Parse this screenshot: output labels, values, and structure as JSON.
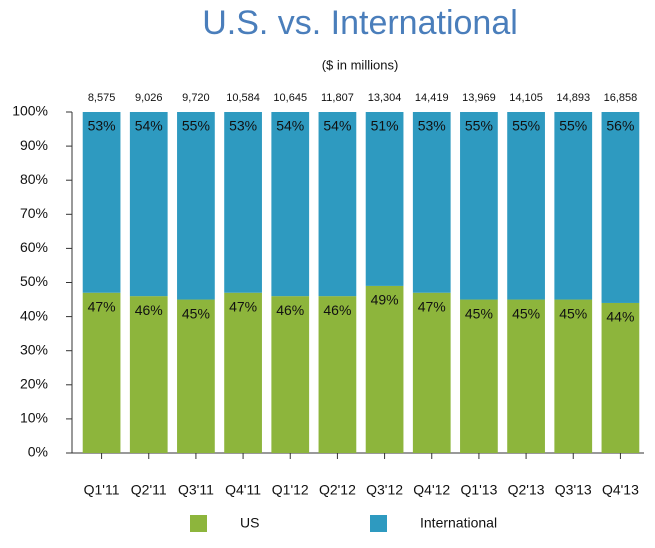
{
  "chart_data": {
    "type": "stacked_bar_100",
    "title": "U.S. vs. International",
    "subtitle": "($ in millions)",
    "categories": [
      "Q1'11",
      "Q2'11",
      "Q3'11",
      "Q4'11",
      "Q1'12",
      "Q2'12",
      "Q3'12",
      "Q4'12",
      "Q1'13",
      "Q2'13",
      "Q3'13",
      "Q4'13"
    ],
    "total_labels": [
      "8,575",
      "9,026",
      "9,720",
      "10,584",
      "10,645",
      "11,807",
      "13,304",
      "14,419",
      "13,969",
      "14,105",
      "14,893",
      "16,858"
    ],
    "series": [
      {
        "name": "US",
        "color": "#8db53c",
        "values": [
          47,
          46,
          45,
          47,
          46,
          46,
          49,
          47,
          45,
          45,
          45,
          44
        ],
        "value_labels": [
          "47%",
          "46%",
          "45%",
          "47%",
          "46%",
          "46%",
          "49%",
          "47%",
          "45%",
          "45%",
          "45%",
          "44%"
        ]
      },
      {
        "name": "International",
        "color": "#2e9ac0",
        "values": [
          53,
          54,
          55,
          53,
          54,
          54,
          51,
          53,
          55,
          55,
          55,
          56
        ],
        "value_labels": [
          "53%",
          "54%",
          "55%",
          "53%",
          "54%",
          "54%",
          "51%",
          "53%",
          "55%",
          "55%",
          "55%",
          "56%"
        ]
      }
    ],
    "ylim": [
      0,
      100
    ],
    "yticks": [
      {
        "value": 0,
        "label": "0%"
      },
      {
        "value": 10,
        "label": "10%"
      },
      {
        "value": 20,
        "label": "20%"
      },
      {
        "value": 30,
        "label": "30%"
      },
      {
        "value": 40,
        "label": "40%"
      },
      {
        "value": 50,
        "label": "50%"
      },
      {
        "value": 60,
        "label": "60%"
      },
      {
        "value": 70,
        "label": "70%"
      },
      {
        "value": 80,
        "label": "80%"
      },
      {
        "value": 90,
        "label": "90%"
      },
      {
        "value": 100,
        "label": "100%"
      }
    ]
  }
}
